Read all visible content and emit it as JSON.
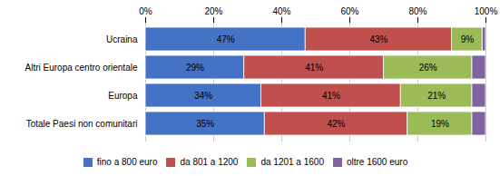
{
  "chart_data": {
    "type": "bar",
    "orientation": "horizontal",
    "stacked": true,
    "data_labels": true,
    "grid": true,
    "legend": "bottom",
    "categories": [
      "Ucraina",
      "Altri Europa centro orientale",
      "Europa",
      "Totale Paesi non comunitari"
    ],
    "series": [
      {
        "name": "fino a 800 euro",
        "color": "#4472C4",
        "values": [
          47,
          29,
          34,
          35
        ],
        "value_labels": [
          "47%",
          "29%",
          "34%",
          "35%"
        ]
      },
      {
        "name": "da 801 a 1200",
        "color": "#C0504D",
        "values": [
          43,
          41,
          41,
          42
        ],
        "value_labels": [
          "43%",
          "41%",
          "41%",
          "42%"
        ]
      },
      {
        "name": "da 1201 a 1600",
        "color": "#9BBB59",
        "values": [
          9,
          26,
          21,
          19
        ],
        "value_labels": [
          "9%",
          "26%",
          "21%",
          "19%"
        ]
      },
      {
        "name": "oltre 1600 euro",
        "color": "#8064A2",
        "values": [
          1,
          4,
          4,
          4
        ],
        "value_labels": [
          null,
          null,
          null,
          null
        ]
      }
    ],
    "xlim": [
      0,
      100
    ],
    "xticks": [
      {
        "value": 0,
        "label": "0%"
      },
      {
        "value": 20,
        "label": "20%"
      },
      {
        "value": 40,
        "label": "40%"
      },
      {
        "value": 60,
        "label": "60%"
      },
      {
        "value": 80,
        "label": "80%"
      },
      {
        "value": 100,
        "label": "100%"
      }
    ]
  }
}
